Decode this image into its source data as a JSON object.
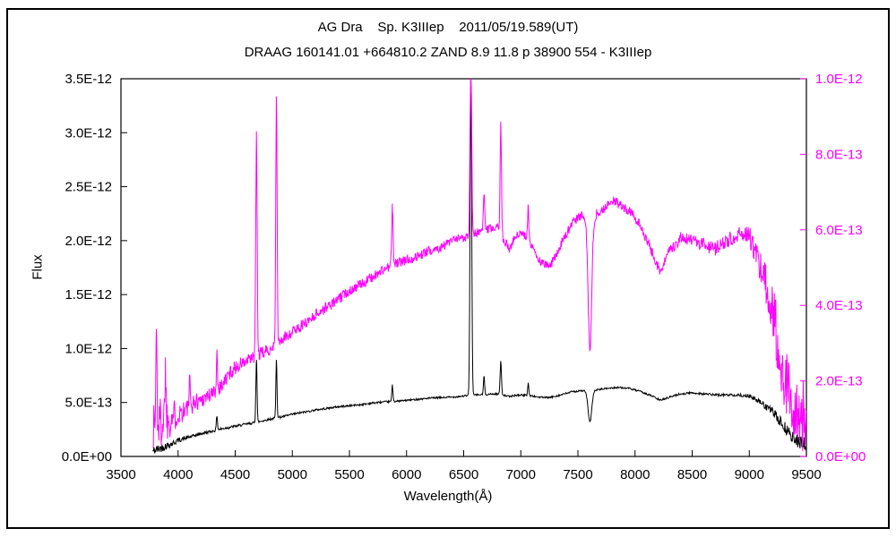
{
  "chart_data": {
    "type": "line",
    "title": "AG Dra    Sp. K3IIIep    2011/05/19.589(UT)",
    "subtitle": "DRAAG 160141.01 +664810.2 ZAND 8.9 11.8 p 38900 554 - K3IIIep",
    "xlabel": "Wavelength(Å)",
    "ylabel": "Flux",
    "grid": false,
    "legend": "none",
    "x_range": [
      3500,
      9500
    ],
    "x_tick_labels": [
      "3500",
      "4000",
      "4500",
      "5000",
      "5500",
      "6000",
      "6500",
      "7000",
      "7500",
      "8000",
      "8500",
      "9000",
      "9500"
    ],
    "left_axis": {
      "max": 3.5e-12,
      "tick_labels": [
        "0.0E+00",
        "5.0E-13",
        "1.0E-12",
        "1.5E-12",
        "2.0E-12",
        "2.5E-12",
        "3.0E-12",
        "3.5E-12"
      ],
      "color": "#000000"
    },
    "right_axis": {
      "max": 1e-12,
      "tick_labels": [
        "0.0E+00",
        "2.0E-13",
        "4.0E-13",
        "6.0E-13",
        "8.0E-13",
        "1.0E-12"
      ],
      "color": "#ff00ff"
    },
    "value_scale": 1e-13,
    "series": [
      {
        "name": "black-left-axis",
        "axis": "left",
        "color": "#000000",
        "data_range": [
          3780,
          9520
        ],
        "continuum": [
          [
            3780,
            0.5
          ],
          [
            3850,
            0.8
          ],
          [
            3900,
            1.0
          ],
          [
            3950,
            1.2
          ],
          [
            4000,
            1.5
          ],
          [
            4100,
            1.8
          ],
          [
            4200,
            2.1
          ],
          [
            4300,
            2.35
          ],
          [
            4400,
            2.6
          ],
          [
            4500,
            2.8
          ],
          [
            4600,
            3.0
          ],
          [
            4700,
            3.2
          ],
          [
            4800,
            3.45
          ],
          [
            4900,
            3.65
          ],
          [
            5000,
            3.9
          ],
          [
            5100,
            4.1
          ],
          [
            5200,
            4.3
          ],
          [
            5300,
            4.45
          ],
          [
            5400,
            4.6
          ],
          [
            5500,
            4.7
          ],
          [
            5600,
            4.8
          ],
          [
            5700,
            4.95
          ],
          [
            5800,
            5.05
          ],
          [
            5900,
            5.1
          ],
          [
            6000,
            5.2
          ],
          [
            6100,
            5.3
          ],
          [
            6200,
            5.4
          ],
          [
            6300,
            5.45
          ],
          [
            6400,
            5.5
          ],
          [
            6500,
            5.6
          ],
          [
            6600,
            5.7
          ],
          [
            6700,
            5.75
          ],
          [
            6800,
            5.8
          ],
          [
            6860,
            5.65
          ],
          [
            6900,
            5.55
          ],
          [
            6950,
            5.65
          ],
          [
            7000,
            5.7
          ],
          [
            7100,
            5.6
          ],
          [
            7150,
            5.5
          ],
          [
            7250,
            5.45
          ],
          [
            7350,
            5.7
          ],
          [
            7450,
            6.0
          ],
          [
            7550,
            6.1
          ],
          [
            7650,
            6.15
          ],
          [
            7750,
            6.3
          ],
          [
            7850,
            6.4
          ],
          [
            7950,
            6.3
          ],
          [
            8050,
            6.0
          ],
          [
            8150,
            5.6
          ],
          [
            8220,
            5.2
          ],
          [
            8300,
            5.5
          ],
          [
            8400,
            5.8
          ],
          [
            8500,
            5.9
          ],
          [
            8600,
            5.8
          ],
          [
            8700,
            5.7
          ],
          [
            8800,
            5.7
          ],
          [
            8900,
            5.7
          ],
          [
            9000,
            5.6
          ],
          [
            9100,
            5.0
          ],
          [
            9200,
            4.2
          ],
          [
            9300,
            2.8
          ],
          [
            9400,
            1.5
          ],
          [
            9520,
            1.0
          ]
        ],
        "noise": [
          [
            3780,
            0.45
          ],
          [
            3900,
            0.35
          ],
          [
            3980,
            0.25
          ],
          [
            4100,
            0.15
          ],
          [
            4400,
            0.12
          ],
          [
            5000,
            0.1
          ],
          [
            6000,
            0.08
          ],
          [
            7000,
            0.08
          ],
          [
            8000,
            0.08
          ],
          [
            8900,
            0.12
          ],
          [
            9100,
            0.25
          ],
          [
            9250,
            0.5
          ],
          [
            9400,
            0.6
          ],
          [
            9520,
            0.6
          ]
        ],
        "lines": [
          [
            4340,
            3.8,
            5
          ],
          [
            4686,
            9.0,
            5
          ],
          [
            4861,
            9.0,
            5
          ],
          [
            5876,
            6.6,
            5
          ],
          [
            6563,
            34.5,
            7
          ],
          [
            6678,
            7.4,
            5
          ],
          [
            6825,
            8.8,
            6
          ],
          [
            7065,
            6.8,
            5
          ],
          [
            7605,
            3.2,
            16
          ]
        ]
      },
      {
        "name": "magenta-right-axis",
        "axis": "right",
        "color": "#ff00ff",
        "data_range": [
          3780,
          9520
        ],
        "continuum": [
          [
            3780,
            0.8
          ],
          [
            3850,
            0.9
          ],
          [
            3900,
            1.0
          ],
          [
            3950,
            1.05
          ],
          [
            4000,
            1.15
          ],
          [
            4100,
            1.3
          ],
          [
            4150,
            1.45
          ],
          [
            4200,
            1.5
          ],
          [
            4250,
            1.6
          ],
          [
            4300,
            1.65
          ],
          [
            4350,
            1.8
          ],
          [
            4400,
            1.95
          ],
          [
            4450,
            2.2
          ],
          [
            4500,
            2.35
          ],
          [
            4550,
            2.45
          ],
          [
            4600,
            2.5
          ],
          [
            4650,
            2.6
          ],
          [
            4700,
            2.7
          ],
          [
            4750,
            2.75
          ],
          [
            4800,
            2.85
          ],
          [
            4850,
            2.95
          ],
          [
            4900,
            3.05
          ],
          [
            4950,
            3.2
          ],
          [
            5000,
            3.3
          ],
          [
            5100,
            3.5
          ],
          [
            5200,
            3.75
          ],
          [
            5300,
            3.95
          ],
          [
            5400,
            4.15
          ],
          [
            5500,
            4.4
          ],
          [
            5600,
            4.55
          ],
          [
            5700,
            4.75
          ],
          [
            5800,
            4.95
          ],
          [
            5900,
            5.1
          ],
          [
            6000,
            5.2
          ],
          [
            6100,
            5.3
          ],
          [
            6200,
            5.45
          ],
          [
            6300,
            5.55
          ],
          [
            6400,
            5.7
          ],
          [
            6500,
            5.8
          ],
          [
            6600,
            5.9
          ],
          [
            6700,
            6.0
          ],
          [
            6800,
            6.05
          ],
          [
            6860,
            5.7
          ],
          [
            6900,
            5.5
          ],
          [
            6950,
            5.8
          ],
          [
            7000,
            5.9
          ],
          [
            7050,
            5.8
          ],
          [
            7100,
            5.6
          ],
          [
            7150,
            5.2
          ],
          [
            7250,
            5.0
          ],
          [
            7300,
            5.3
          ],
          [
            7350,
            5.6
          ],
          [
            7450,
            6.2
          ],
          [
            7550,
            6.4
          ],
          [
            7650,
            6.4
          ],
          [
            7750,
            6.6
          ],
          [
            7800,
            6.8
          ],
          [
            7850,
            6.7
          ],
          [
            7950,
            6.5
          ],
          [
            8050,
            6.1
          ],
          [
            8150,
            5.4
          ],
          [
            8220,
            4.9
          ],
          [
            8300,
            5.4
          ],
          [
            8400,
            5.8
          ],
          [
            8500,
            5.7
          ],
          [
            8600,
            5.6
          ],
          [
            8700,
            5.5
          ],
          [
            8800,
            5.7
          ],
          [
            8900,
            5.9
          ],
          [
            9000,
            5.8
          ],
          [
            9050,
            5.5
          ],
          [
            9100,
            5.0
          ],
          [
            9200,
            4.0
          ],
          [
            9300,
            2.2
          ],
          [
            9400,
            1.2
          ],
          [
            9520,
            1.0
          ]
        ],
        "noise": [
          [
            3780,
            0.9
          ],
          [
            3900,
            0.6
          ],
          [
            3980,
            0.4
          ],
          [
            4100,
            0.25
          ],
          [
            4400,
            0.2
          ],
          [
            5000,
            0.15
          ],
          [
            6000,
            0.13
          ],
          [
            7000,
            0.12
          ],
          [
            8000,
            0.13
          ],
          [
            8900,
            0.2
          ],
          [
            9100,
            0.4
          ],
          [
            9250,
            0.9
          ],
          [
            9400,
            1.0
          ],
          [
            9520,
            1.0
          ]
        ],
        "lines": [
          [
            3810,
            3.3,
            5
          ],
          [
            3889,
            2.4,
            5
          ],
          [
            4101,
            2.0,
            5
          ],
          [
            4340,
            2.75,
            5
          ],
          [
            4686,
            8.45,
            6
          ],
          [
            4861,
            9.5,
            6
          ],
          [
            5876,
            6.6,
            6
          ],
          [
            6563,
            10.6,
            7
          ],
          [
            6678,
            7.0,
            5
          ],
          [
            6825,
            8.8,
            6
          ],
          [
            7065,
            6.6,
            5
          ],
          [
            7605,
            2.9,
            16
          ]
        ]
      }
    ]
  }
}
